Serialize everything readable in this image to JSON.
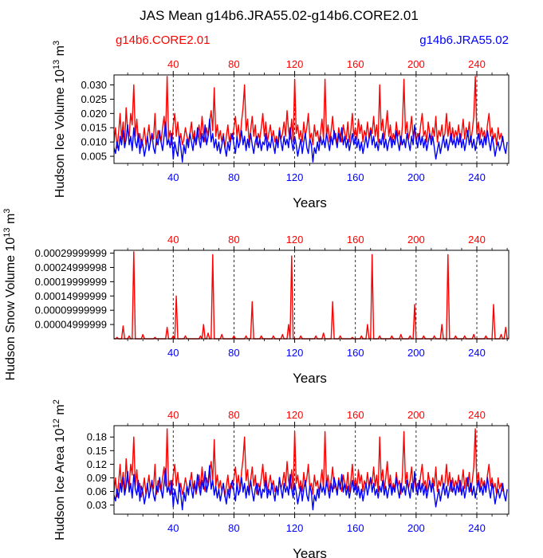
{
  "title": "JAS Mean g14b6.JRA55.02-g14b6.CORE2.01",
  "legend": {
    "left": "g14b6.CORE2.01",
    "right": "g14b6.JRA55.02"
  },
  "colors": {
    "core": "#ff0000",
    "jra": "#0000ff",
    "axis": "#000000"
  },
  "chart_data": [
    {
      "type": "line",
      "ylabel": "Hudson Ice Volume 10^13 m^3",
      "xlabel": "Years",
      "x_top_ticks": [
        "40",
        "80",
        "120",
        "160",
        "200",
        "240"
      ],
      "x_bottom_ticks": [
        "40",
        "80",
        "120",
        "160",
        "200",
        "240"
      ],
      "y_ticks": [
        "0.005",
        "0.010",
        "0.015",
        "0.020",
        "0.025",
        "0.030"
      ],
      "xlim": [
        1,
        261
      ],
      "ylim": [
        0.0025,
        0.0335
      ],
      "series": [
        {
          "name": "g14b6.CORE2.01",
          "color": "#ff0000",
          "top_axis": true,
          "x_start": 1,
          "values": [
            0.01,
            0.015,
            0.008,
            0.013,
            0.02,
            0.011,
            0.017,
            0.009,
            0.022,
            0.014,
            0.012,
            0.02,
            0.016,
            0.03,
            0.012,
            0.018,
            0.01,
            0.013,
            0.008,
            0.011,
            0.015,
            0.009,
            0.012,
            0.016,
            0.01,
            0.013,
            0.011,
            0.02,
            0.009,
            0.014,
            0.012,
            0.01,
            0.015,
            0.019,
            0.012,
            0.033,
            0.011,
            0.014,
            0.009,
            0.016,
            0.02,
            0.012,
            0.017,
            0.01,
            0.013,
            0.009,
            0.011,
            0.015,
            0.012,
            0.01,
            0.013,
            0.017,
            0.011,
            0.014,
            0.009,
            0.012,
            0.016,
            0.011,
            0.019,
            0.013,
            0.01,
            0.015,
            0.012,
            0.017,
            0.021,
            0.014,
            0.029,
            0.012,
            0.016,
            0.011,
            0.014,
            0.01,
            0.013,
            0.008,
            0.012,
            0.016,
            0.01,
            0.013,
            0.011,
            0.015,
            0.019,
            0.012,
            0.016,
            0.01,
            0.017,
            0.022,
            0.03,
            0.014,
            0.018,
            0.01,
            0.014,
            0.019,
            0.012,
            0.016,
            0.009,
            0.013,
            0.011,
            0.015,
            0.02,
            0.012,
            0.017,
            0.01,
            0.013,
            0.016,
            0.011,
            0.014,
            0.01,
            0.012,
            0.009,
            0.015,
            0.011,
            0.013,
            0.017,
            0.012,
            0.021,
            0.014,
            0.011,
            0.018,
            0.01,
            0.032,
            0.013,
            0.016,
            0.011,
            0.014,
            0.01,
            0.017,
            0.012,
            0.015,
            0.02,
            0.011,
            0.013,
            0.009,
            0.016,
            0.012,
            0.014,
            0.01,
            0.013,
            0.018,
            0.011,
            0.032,
            0.012,
            0.016,
            0.01,
            0.014,
            0.019,
            0.011,
            0.013,
            0.009,
            0.015,
            0.012,
            0.01,
            0.016,
            0.013,
            0.011,
            0.017,
            0.01,
            0.014,
            0.02,
            0.012,
            0.015,
            0.011,
            0.018,
            0.013,
            0.016,
            0.01,
            0.014,
            0.012,
            0.017,
            0.011,
            0.015,
            0.013,
            0.019,
            0.012,
            0.016,
            0.01,
            0.03,
            0.014,
            0.018,
            0.011,
            0.015,
            0.021,
            0.012,
            0.016,
            0.01,
            0.013,
            0.011,
            0.017,
            0.012,
            0.014,
            0.009,
            0.016,
            0.032,
            0.013,
            0.017,
            0.011,
            0.014,
            0.019,
            0.012,
            0.015,
            0.01,
            0.013,
            0.011,
            0.016,
            0.02,
            0.012,
            0.014,
            0.01,
            0.017,
            0.013,
            0.011,
            0.015,
            0.012,
            0.019,
            0.01,
            0.014,
            0.012,
            0.016,
            0.011,
            0.013,
            0.02,
            0.012,
            0.017,
            0.01,
            0.015,
            0.011,
            0.014,
            0.012,
            0.016,
            0.01,
            0.013,
            0.018,
            0.011,
            0.015,
            0.012,
            0.017,
            0.01,
            0.014,
            0.019,
            0.033,
            0.013,
            0.017,
            0.011,
            0.015,
            0.012,
            0.014,
            0.01,
            0.016,
            0.02,
            0.012,
            0.015,
            0.011,
            0.013,
            0.009,
            0.015,
            0.011,
            0.013,
            0.01
          ]
        },
        {
          "name": "g14b6.JRA55.02",
          "color": "#0000ff",
          "top_axis": false,
          "x_start": 1,
          "values": [
            0.008,
            0.006,
            0.01,
            0.007,
            0.012,
            0.009,
            0.014,
            0.008,
            0.011,
            0.016,
            0.009,
            0.012,
            0.007,
            0.015,
            0.01,
            0.008,
            0.013,
            0.006,
            0.011,
            0.009,
            0.005,
            0.008,
            0.012,
            0.007,
            0.01,
            0.013,
            0.008,
            0.006,
            0.011,
            0.009,
            0.014,
            0.01,
            0.007,
            0.012,
            0.017,
            0.009,
            0.011,
            0.008,
            0.013,
            0.004,
            0.01,
            0.007,
            0.005,
            0.012,
            0.008,
            0.003,
            0.009,
            0.006,
            0.011,
            0.008,
            0.013,
            0.01,
            0.007,
            0.012,
            0.009,
            0.015,
            0.011,
            0.008,
            0.013,
            0.01,
            0.016,
            0.009,
            0.012,
            0.018,
            0.01,
            0.013,
            0.008,
            0.011,
            0.007,
            0.01,
            0.006,
            0.009,
            0.012,
            0.008,
            0.005,
            0.01,
            0.007,
            0.011,
            0.013,
            0.009,
            0.006,
            0.012,
            0.008,
            0.01,
            0.014,
            0.009,
            0.012,
            0.007,
            0.011,
            0.008,
            0.013,
            0.009,
            0.006,
            0.01,
            0.012,
            0.008,
            0.011,
            0.007,
            0.01,
            0.009,
            0.013,
            0.007,
            0.01,
            0.008,
            0.012,
            0.009,
            0.006,
            0.011,
            0.008,
            0.014,
            0.01,
            0.007,
            0.012,
            0.009,
            0.011,
            0.008,
            0.015,
            0.01,
            0.007,
            0.012,
            0.009,
            0.005,
            0.008,
            0.011,
            0.006,
            0.01,
            0.013,
            0.008,
            0.006,
            0.011,
            0.009,
            0.003,
            0.008,
            0.006,
            0.01,
            0.007,
            0.012,
            0.009,
            0.011,
            0.008,
            0.013,
            0.01,
            0.007,
            0.012,
            0.009,
            0.014,
            0.011,
            0.008,
            0.013,
            0.01,
            0.015,
            0.009,
            0.012,
            0.008,
            0.011,
            0.007,
            0.01,
            0.013,
            0.009,
            0.012,
            0.008,
            0.011,
            0.007,
            0.01,
            0.006,
            0.009,
            0.012,
            0.008,
            0.011,
            0.014,
            0.009,
            0.012,
            0.008,
            0.01,
            0.007,
            0.011,
            0.009,
            0.013,
            0.008,
            0.011,
            0.007,
            0.01,
            0.012,
            0.008,
            0.011,
            0.009,
            0.014,
            0.01,
            0.007,
            0.012,
            0.009,
            0.011,
            0.008,
            0.013,
            0.01,
            0.007,
            0.012,
            0.009,
            0.016,
            0.011,
            0.008,
            0.013,
            0.009,
            0.012,
            0.008,
            0.011,
            0.007,
            0.01,
            0.013,
            0.009,
            0.012,
            0.008,
            0.004,
            0.007,
            0.01,
            0.006,
            0.009,
            0.012,
            0.008,
            0.011,
            0.007,
            0.01,
            0.013,
            0.009,
            0.011,
            0.008,
            0.012,
            0.009,
            0.013,
            0.008,
            0.011,
            0.007,
            0.01,
            0.014,
            0.009,
            0.012,
            0.008,
            0.011,
            0.007,
            0.01,
            0.013,
            0.009,
            0.011,
            0.008,
            0.012,
            0.009,
            0.014,
            0.01,
            0.007,
            0.012,
            0.009,
            0.005,
            0.008,
            0.01,
            0.007,
            0.009,
            0.012,
            0.008,
            0.006,
            0.01
          ]
        }
      ]
    },
    {
      "type": "line",
      "ylabel": "Hudson Snow Volume 10^13 m^3",
      "xlabel": "Years",
      "x_top_ticks": [
        "40",
        "80",
        "120",
        "160",
        "200",
        "240"
      ],
      "x_bottom_ticks": [
        "40",
        "80",
        "120",
        "160",
        "200",
        "240"
      ],
      "y_ticks": [
        "0.00004999999",
        "0.00009999999",
        "0.00014999999",
        "0.00019999999",
        "0.00024999998",
        "0.00029999999"
      ],
      "xlim": [
        1,
        261
      ],
      "ylim": [
        0,
        0.00031
      ],
      "series": [
        {
          "name": "g14b6.CORE2.01",
          "color": "#ff0000",
          "top_axis": true,
          "x_start": 1,
          "peaks": [
            [
              3,
              5e-06
            ],
            [
              7,
              4.5e-05
            ],
            [
              11,
              1e-05
            ],
            [
              14,
              0.000305
            ],
            [
              20,
              1.5e-05
            ],
            [
              28,
              5e-06
            ],
            [
              36,
              4e-05
            ],
            [
              40,
              1e-05
            ],
            [
              42,
              0.00015
            ],
            [
              48,
              1e-05
            ],
            [
              58,
              1e-05
            ],
            [
              60,
              5e-05
            ],
            [
              63,
              2e-05
            ],
            [
              66,
              0.000295
            ],
            [
              72,
              1.5e-05
            ],
            [
              80,
              1e-05
            ],
            [
              88,
              1e-05
            ],
            [
              92,
              0.00013
            ],
            [
              98,
              1e-05
            ],
            [
              106,
              1e-05
            ],
            [
              112,
              1.5e-05
            ],
            [
              116,
              5e-05
            ],
            [
              118,
              0.00029
            ],
            [
              124,
              1e-05
            ],
            [
              134,
              1e-05
            ],
            [
              139,
              2e-05
            ],
            [
              145,
              0.00013
            ],
            [
              150,
              1e-05
            ],
            [
              158,
              5e-06
            ],
            [
              164,
              1e-05
            ],
            [
              168,
              5e-05
            ],
            [
              171,
              0.000295
            ],
            [
              176,
              1e-05
            ],
            [
              184,
              1e-05
            ],
            [
              190,
              1.5e-05
            ],
            [
              196,
              1e-05
            ],
            [
              199,
              0.00012
            ],
            [
              205,
              1e-05
            ],
            [
              212,
              1e-05
            ],
            [
              217,
              5e-05
            ],
            [
              221,
              0.000295
            ],
            [
              226,
              1e-05
            ],
            [
              232,
              1e-05
            ],
            [
              238,
              1.5e-05
            ],
            [
              246,
              1e-05
            ],
            [
              251,
              0.00012
            ],
            [
              256,
              1.5e-05
            ],
            [
              259,
              4e-05
            ]
          ]
        }
      ]
    },
    {
      "type": "line",
      "ylabel": "Hudson Ice Area 10^12 m^2",
      "xlabel": "Years",
      "x_top_ticks": [
        "40",
        "80",
        "120",
        "160",
        "200",
        "240"
      ],
      "x_bottom_ticks": [
        "40",
        "80",
        "120",
        "160",
        "200",
        "240"
      ],
      "y_ticks": [
        "0.03",
        "0.06",
        "0.09",
        "0.12",
        "0.15",
        "0.18"
      ],
      "xlim": [
        1,
        261
      ],
      "ylim": [
        0.01,
        0.205
      ],
      "series": [
        {
          "name": "g14b6.CORE2.01",
          "color": "#ff0000",
          "top_axis": true,
          "x_start": 1,
          "derive_from": 0,
          "scale": 6.0
        },
        {
          "name": "g14b6.JRA55.02",
          "color": "#0000ff",
          "top_axis": false,
          "x_start": 1,
          "derive_from": 0,
          "scale": 6.5
        }
      ]
    }
  ]
}
